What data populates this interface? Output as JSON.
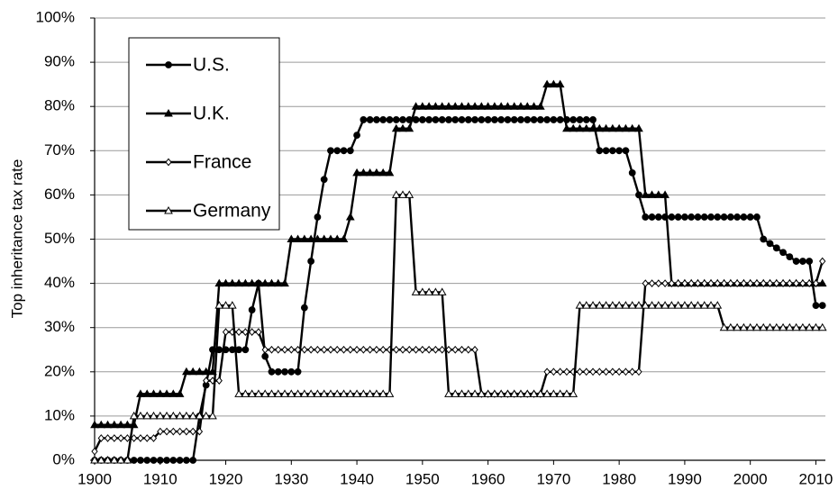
{
  "chart_data": {
    "type": "line",
    "ylabel": "Top inheritance tax rate",
    "x": [
      1900,
      1901,
      1902,
      1903,
      1904,
      1905,
      1906,
      1907,
      1908,
      1909,
      1910,
      1911,
      1912,
      1913,
      1914,
      1915,
      1916,
      1917,
      1918,
      1919,
      1920,
      1921,
      1922,
      1923,
      1924,
      1925,
      1926,
      1927,
      1928,
      1929,
      1930,
      1931,
      1932,
      1933,
      1934,
      1935,
      1936,
      1937,
      1938,
      1939,
      1940,
      1941,
      1942,
      1943,
      1944,
      1945,
      1946,
      1947,
      1948,
      1949,
      1950,
      1951,
      1952,
      1953,
      1954,
      1955,
      1956,
      1957,
      1958,
      1959,
      1960,
      1961,
      1962,
      1963,
      1964,
      1965,
      1966,
      1967,
      1968,
      1969,
      1970,
      1971,
      1972,
      1973,
      1974,
      1975,
      1976,
      1977,
      1978,
      1979,
      1980,
      1981,
      1982,
      1983,
      1984,
      1985,
      1986,
      1987,
      1988,
      1989,
      1990,
      1991,
      1992,
      1993,
      1994,
      1995,
      1996,
      1997,
      1998,
      1999,
      2000,
      2001,
      2002,
      2003,
      2004,
      2005,
      2006,
      2007,
      2008,
      2009,
      2010,
      2011
    ],
    "series": [
      {
        "name": "U.S.",
        "color": "#000000",
        "marker": "circle",
        "values": [
          0,
          0,
          0,
          0,
          0,
          0,
          0,
          0,
          0,
          0,
          0,
          0,
          0,
          0,
          0,
          0,
          10,
          17,
          25,
          25,
          25,
          25,
          25,
          25,
          34,
          40,
          23.5,
          20,
          20,
          20,
          20,
          20,
          34.5,
          45,
          55,
          63.5,
          70,
          70,
          70,
          70,
          73.5,
          77,
          77,
          77,
          77,
          77,
          77,
          77,
          77,
          77,
          77,
          77,
          77,
          77,
          77,
          77,
          77,
          77,
          77,
          77,
          77,
          77,
          77,
          77,
          77,
          77,
          77,
          77,
          77,
          77,
          77,
          77,
          77,
          77,
          77,
          77,
          77,
          70,
          70,
          70,
          70,
          70,
          65,
          60,
          55,
          55,
          55,
          55,
          55,
          55,
          55,
          55,
          55,
          55,
          55,
          55,
          55,
          55,
          55,
          55,
          55,
          55,
          50,
          49,
          48,
          47,
          46,
          45,
          45,
          45,
          35,
          35
        ]
      },
      {
        "name": "U.K.",
        "color": "#000000",
        "marker": "triangle",
        "values": [
          8,
          8,
          8,
          8,
          8,
          8,
          8,
          15,
          15,
          15,
          15,
          15,
          15,
          15,
          20,
          20,
          20,
          20,
          20,
          40,
          40,
          40,
          40,
          40,
          40,
          40,
          40,
          40,
          40,
          40,
          50,
          50,
          50,
          50,
          50,
          50,
          50,
          50,
          50,
          55,
          65,
          65,
          65,
          65,
          65,
          65,
          75,
          75,
          75,
          80,
          80,
          80,
          80,
          80,
          80,
          80,
          80,
          80,
          80,
          80,
          80,
          80,
          80,
          80,
          80,
          80,
          80,
          80,
          80,
          85,
          85,
          85,
          75,
          75,
          75,
          75,
          75,
          75,
          75,
          75,
          75,
          75,
          75,
          75,
          60,
          60,
          60,
          60,
          40,
          40,
          40,
          40,
          40,
          40,
          40,
          40,
          40,
          40,
          40,
          40,
          40,
          40,
          40,
          40,
          40,
          40,
          40,
          40,
          40,
          40,
          40,
          40
        ]
      },
      {
        "name": "France",
        "color": "#000000",
        "marker": "diamond-open",
        "values": [
          2,
          5,
          5,
          5,
          5,
          5,
          5,
          5,
          5,
          5,
          6.5,
          6.5,
          6.5,
          6.5,
          6.5,
          6.5,
          6.5,
          18,
          18,
          18,
          29,
          29,
          29,
          29,
          29,
          29,
          25,
          25,
          25,
          25,
          25,
          25,
          25,
          25,
          25,
          25,
          25,
          25,
          25,
          25,
          25,
          25,
          25,
          25,
          25,
          25,
          25,
          25,
          25,
          25,
          25,
          25,
          25,
          25,
          25,
          25,
          25,
          25,
          25,
          15,
          15,
          15,
          15,
          15,
          15,
          15,
          15,
          15,
          15,
          20,
          20,
          20,
          20,
          20,
          20,
          20,
          20,
          20,
          20,
          20,
          20,
          20,
          20,
          20,
          40,
          40,
          40,
          40,
          40,
          40,
          40,
          40,
          40,
          40,
          40,
          40,
          40,
          40,
          40,
          40,
          40,
          40,
          40,
          40,
          40,
          40,
          40,
          40,
          40,
          40,
          40,
          45
        ]
      },
      {
        "name": "Germany",
        "color": "#000000",
        "marker": "triangle-open",
        "values": [
          0,
          0,
          0,
          0,
          0,
          0,
          10,
          10,
          10,
          10,
          10,
          10,
          10,
          10,
          10,
          10,
          10,
          10,
          10,
          35,
          35,
          35,
          15,
          15,
          15,
          15,
          15,
          15,
          15,
          15,
          15,
          15,
          15,
          15,
          15,
          15,
          15,
          15,
          15,
          15,
          15,
          15,
          15,
          15,
          15,
          15,
          60,
          60,
          60,
          38,
          38,
          38,
          38,
          38,
          15,
          15,
          15,
          15,
          15,
          15,
          15,
          15,
          15,
          15,
          15,
          15,
          15,
          15,
          15,
          15,
          15,
          15,
          15,
          15,
          35,
          35,
          35,
          35,
          35,
          35,
          35,
          35,
          35,
          35,
          35,
          35,
          35,
          35,
          35,
          35,
          35,
          35,
          35,
          35,
          35,
          35,
          30,
          30,
          30,
          30,
          30,
          30,
          30,
          30,
          30,
          30,
          30,
          30,
          30,
          30,
          30,
          30
        ]
      }
    ],
    "xlim": [
      1900,
      2012
    ],
    "xticks": [
      1900,
      1910,
      1920,
      1930,
      1940,
      1950,
      1960,
      1970,
      1980,
      1990,
      2000,
      2010
    ],
    "ylim": [
      0,
      100
    ],
    "yticks": [
      {
        "value": 0,
        "label": "0%"
      },
      {
        "value": 10,
        "label": "10%"
      },
      {
        "value": 20,
        "label": "20%"
      },
      {
        "value": 30,
        "label": "30%"
      },
      {
        "value": 40,
        "label": "40%"
      },
      {
        "value": 50,
        "label": "50%"
      },
      {
        "value": 60,
        "label": "60%"
      },
      {
        "value": 70,
        "label": "70%"
      },
      {
        "value": 80,
        "label": "80%"
      },
      {
        "value": 90,
        "label": "90%"
      },
      {
        "value": 100,
        "label": "100%"
      }
    ],
    "grid": true,
    "legend": "upper left"
  }
}
